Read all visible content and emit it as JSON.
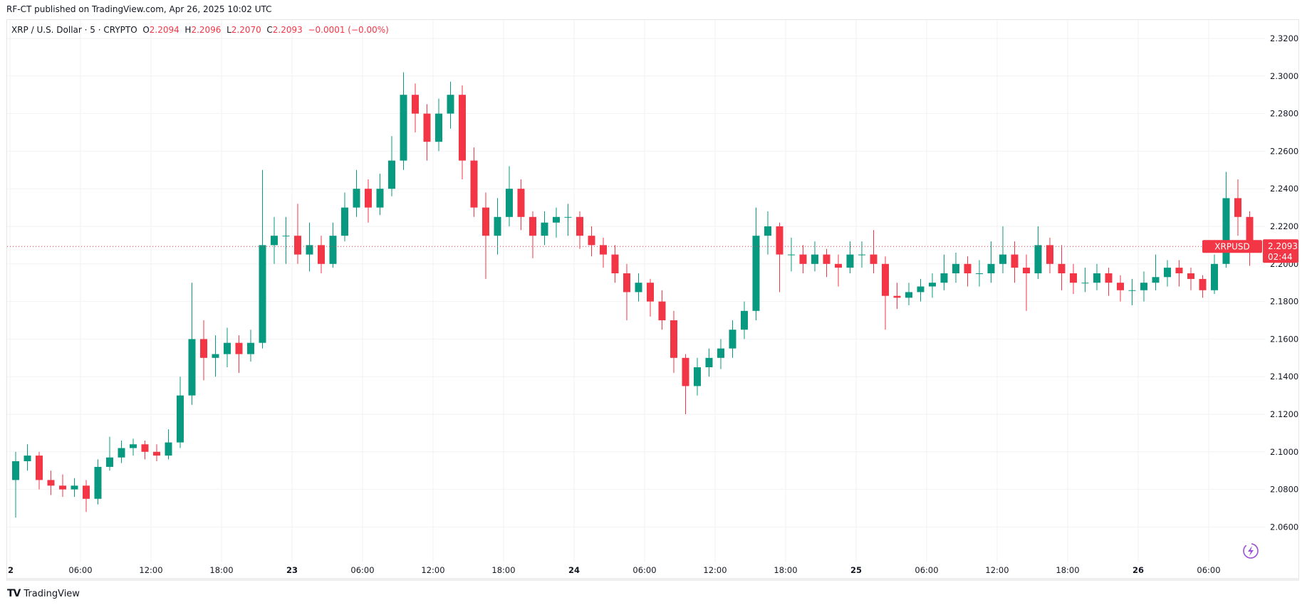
{
  "publisher_line": "RF-CT published on TradingView.com, Apr 26, 2025 10:02 UTC",
  "legend": {
    "symbol": "XRP / U.S. Dollar · 5 · CRYPTO",
    "o_label": "O",
    "o": "2.2094",
    "h_label": "H",
    "h": "2.2096",
    "l_label": "L",
    "l": "2.2070",
    "c_label": "C",
    "c": "2.2093",
    "change": "−0.0001 (−0.00%)"
  },
  "price_tag": {
    "symbol": "XRPUSD",
    "price": "2.2093",
    "countdown": "02:44"
  },
  "footer": {
    "logo_text": "TradingView"
  },
  "icons": {
    "logo": "tradingview-logo-icon",
    "lightning": "lightning-icon"
  },
  "colors": {
    "up": "#089981",
    "down": "#f23645",
    "grid": "#f2f2f2",
    "lightning": "#9c4fd6"
  },
  "chart_data": {
    "type": "candlestick",
    "title": "",
    "ylim": [
      2.05,
      2.32
    ],
    "y_ticks": [
      "2.3200",
      "2.3000",
      "2.2800",
      "2.2600",
      "2.2400",
      "2.2200",
      "2.2000",
      "2.1800",
      "2.1600",
      "2.1400",
      "2.1200",
      "2.1000",
      "2.0800",
      "2.0600"
    ],
    "x_ticks": [
      "2",
      "06:00",
      "12:00",
      "18:00",
      "23",
      "06:00",
      "12:00",
      "18:00",
      "24",
      "06:00",
      "12:00",
      "18:00",
      "25",
      "06:00",
      "12:00",
      "18:00",
      "26",
      "06:00"
    ],
    "x_tick_hours": [
      0,
      6,
      12,
      18,
      24,
      30,
      36,
      42,
      48,
      54,
      60,
      66,
      72,
      78,
      84,
      90,
      96,
      102
    ],
    "start": "Apr 22, 2025 00:00",
    "candle_hours": 1,
    "last_price": 2.2093,
    "grid": true,
    "ohlc": [
      [
        2.085,
        2.1,
        2.065,
        2.095
      ],
      [
        2.095,
        2.104,
        2.09,
        2.098
      ],
      [
        2.098,
        2.1,
        2.08,
        2.085
      ],
      [
        2.085,
        2.09,
        2.077,
        2.082
      ],
      [
        2.082,
        2.088,
        2.076,
        2.08
      ],
      [
        2.08,
        2.086,
        2.076,
        2.082
      ],
      [
        2.082,
        2.085,
        2.068,
        2.075
      ],
      [
        2.075,
        2.096,
        2.072,
        2.092
      ],
      [
        2.092,
        2.108,
        2.09,
        2.097
      ],
      [
        2.097,
        2.106,
        2.094,
        2.102
      ],
      [
        2.102,
        2.107,
        2.098,
        2.104
      ],
      [
        2.104,
        2.106,
        2.096,
        2.1
      ],
      [
        2.1,
        2.104,
        2.095,
        2.098
      ],
      [
        2.098,
        2.112,
        2.096,
        2.105
      ],
      [
        2.105,
        2.14,
        2.102,
        2.13
      ],
      [
        2.13,
        2.19,
        2.125,
        2.16
      ],
      [
        2.16,
        2.17,
        2.138,
        2.15
      ],
      [
        2.15,
        2.162,
        2.14,
        2.152
      ],
      [
        2.152,
        2.166,
        2.145,
        2.158
      ],
      [
        2.158,
        2.162,
        2.142,
        2.152
      ],
      [
        2.152,
        2.165,
        2.148,
        2.158
      ],
      [
        2.158,
        2.25,
        2.155,
        2.21
      ],
      [
        2.21,
        2.225,
        2.2,
        2.215
      ],
      [
        2.215,
        2.225,
        2.2,
        2.215
      ],
      [
        2.215,
        2.232,
        2.2,
        2.205
      ],
      [
        2.205,
        2.222,
        2.196,
        2.21
      ],
      [
        2.21,
        2.215,
        2.195,
        2.2
      ],
      [
        2.2,
        2.222,
        2.198,
        2.215
      ],
      [
        2.215,
        2.238,
        2.212,
        2.23
      ],
      [
        2.23,
        2.25,
        2.225,
        2.24
      ],
      [
        2.24,
        2.245,
        2.222,
        2.23
      ],
      [
        2.23,
        2.248,
        2.226,
        2.24
      ],
      [
        2.24,
        2.268,
        2.236,
        2.255
      ],
      [
        2.255,
        2.302,
        2.25,
        2.29
      ],
      [
        2.29,
        2.296,
        2.27,
        2.28
      ],
      [
        2.28,
        2.285,
        2.255,
        2.265
      ],
      [
        2.265,
        2.288,
        2.26,
        2.28
      ],
      [
        2.28,
        2.297,
        2.272,
        2.29
      ],
      [
        2.29,
        2.295,
        2.245,
        2.255
      ],
      [
        2.255,
        2.262,
        2.225,
        2.23
      ],
      [
        2.23,
        2.238,
        2.192,
        2.215
      ],
      [
        2.215,
        2.235,
        2.205,
        2.225
      ],
      [
        2.225,
        2.252,
        2.22,
        2.24
      ],
      [
        2.24,
        2.245,
        2.218,
        2.225
      ],
      [
        2.225,
        2.228,
        2.203,
        2.215
      ],
      [
        2.215,
        2.228,
        2.21,
        2.222
      ],
      [
        2.222,
        2.23,
        2.214,
        2.225
      ],
      [
        2.225,
        2.232,
        2.215,
        2.225
      ],
      [
        2.225,
        2.228,
        2.208,
        2.215
      ],
      [
        2.215,
        2.22,
        2.204,
        2.21
      ],
      [
        2.21,
        2.214,
        2.198,
        2.205
      ],
      [
        2.205,
        2.21,
        2.19,
        2.195
      ],
      [
        2.195,
        2.2,
        2.17,
        2.185
      ],
      [
        2.185,
        2.195,
        2.18,
        2.19
      ],
      [
        2.19,
        2.192,
        2.172,
        2.18
      ],
      [
        2.18,
        2.186,
        2.165,
        2.17
      ],
      [
        2.17,
        2.175,
        2.142,
        2.15
      ],
      [
        2.15,
        2.152,
        2.12,
        2.135
      ],
      [
        2.135,
        2.15,
        2.13,
        2.145
      ],
      [
        2.145,
        2.155,
        2.14,
        2.15
      ],
      [
        2.15,
        2.16,
        2.144,
        2.155
      ],
      [
        2.155,
        2.17,
        2.15,
        2.165
      ],
      [
        2.165,
        2.18,
        2.16,
        2.175
      ],
      [
        2.175,
        2.23,
        2.17,
        2.215
      ],
      [
        2.215,
        2.228,
        2.205,
        2.22
      ],
      [
        2.22,
        2.222,
        2.185,
        2.205
      ],
      [
        2.205,
        2.214,
        2.196,
        2.205
      ],
      [
        2.205,
        2.21,
        2.195,
        2.2
      ],
      [
        2.2,
        2.212,
        2.196,
        2.205
      ],
      [
        2.205,
        2.208,
        2.193,
        2.2
      ],
      [
        2.2,
        2.205,
        2.188,
        2.198
      ],
      [
        2.198,
        2.212,
        2.195,
        2.205
      ],
      [
        2.205,
        2.212,
        2.198,
        2.205
      ],
      [
        2.205,
        2.218,
        2.195,
        2.2
      ],
      [
        2.2,
        2.204,
        2.165,
        2.183
      ],
      [
        2.183,
        2.19,
        2.176,
        2.182
      ],
      [
        2.182,
        2.19,
        2.178,
        2.185
      ],
      [
        2.185,
        2.192,
        2.18,
        2.188
      ],
      [
        2.188,
        2.195,
        2.182,
        2.19
      ],
      [
        2.19,
        2.205,
        2.186,
        2.195
      ],
      [
        2.195,
        2.206,
        2.19,
        2.2
      ],
      [
        2.2,
        2.204,
        2.188,
        2.195
      ],
      [
        2.195,
        2.202,
        2.188,
        2.195
      ],
      [
        2.195,
        2.212,
        2.19,
        2.2
      ],
      [
        2.2,
        2.22,
        2.195,
        2.205
      ],
      [
        2.205,
        2.212,
        2.19,
        2.198
      ],
      [
        2.198,
        2.205,
        2.175,
        2.195
      ],
      [
        2.195,
        2.22,
        2.192,
        2.21
      ],
      [
        2.21,
        2.214,
        2.195,
        2.2
      ],
      [
        2.2,
        2.21,
        2.186,
        2.195
      ],
      [
        2.195,
        2.2,
        2.184,
        2.19
      ],
      [
        2.19,
        2.198,
        2.185,
        2.19
      ],
      [
        2.19,
        2.2,
        2.186,
        2.195
      ],
      [
        2.195,
        2.198,
        2.183,
        2.19
      ],
      [
        2.19,
        2.194,
        2.18,
        2.186
      ],
      [
        2.186,
        2.192,
        2.178,
        2.186
      ],
      [
        2.186,
        2.196,
        2.18,
        2.19
      ],
      [
        2.19,
        2.205,
        2.186,
        2.193
      ],
      [
        2.193,
        2.202,
        2.188,
        2.198
      ],
      [
        2.198,
        2.202,
        2.188,
        2.195
      ],
      [
        2.195,
        2.198,
        2.186,
        2.192
      ],
      [
        2.192,
        2.194,
        2.182,
        2.186
      ],
      [
        2.186,
        2.205,
        2.184,
        2.2
      ],
      [
        2.2,
        2.249,
        2.198,
        2.235
      ],
      [
        2.235,
        2.245,
        2.215,
        2.225
      ],
      [
        2.225,
        2.228,
        2.199,
        2.2093
      ]
    ]
  }
}
